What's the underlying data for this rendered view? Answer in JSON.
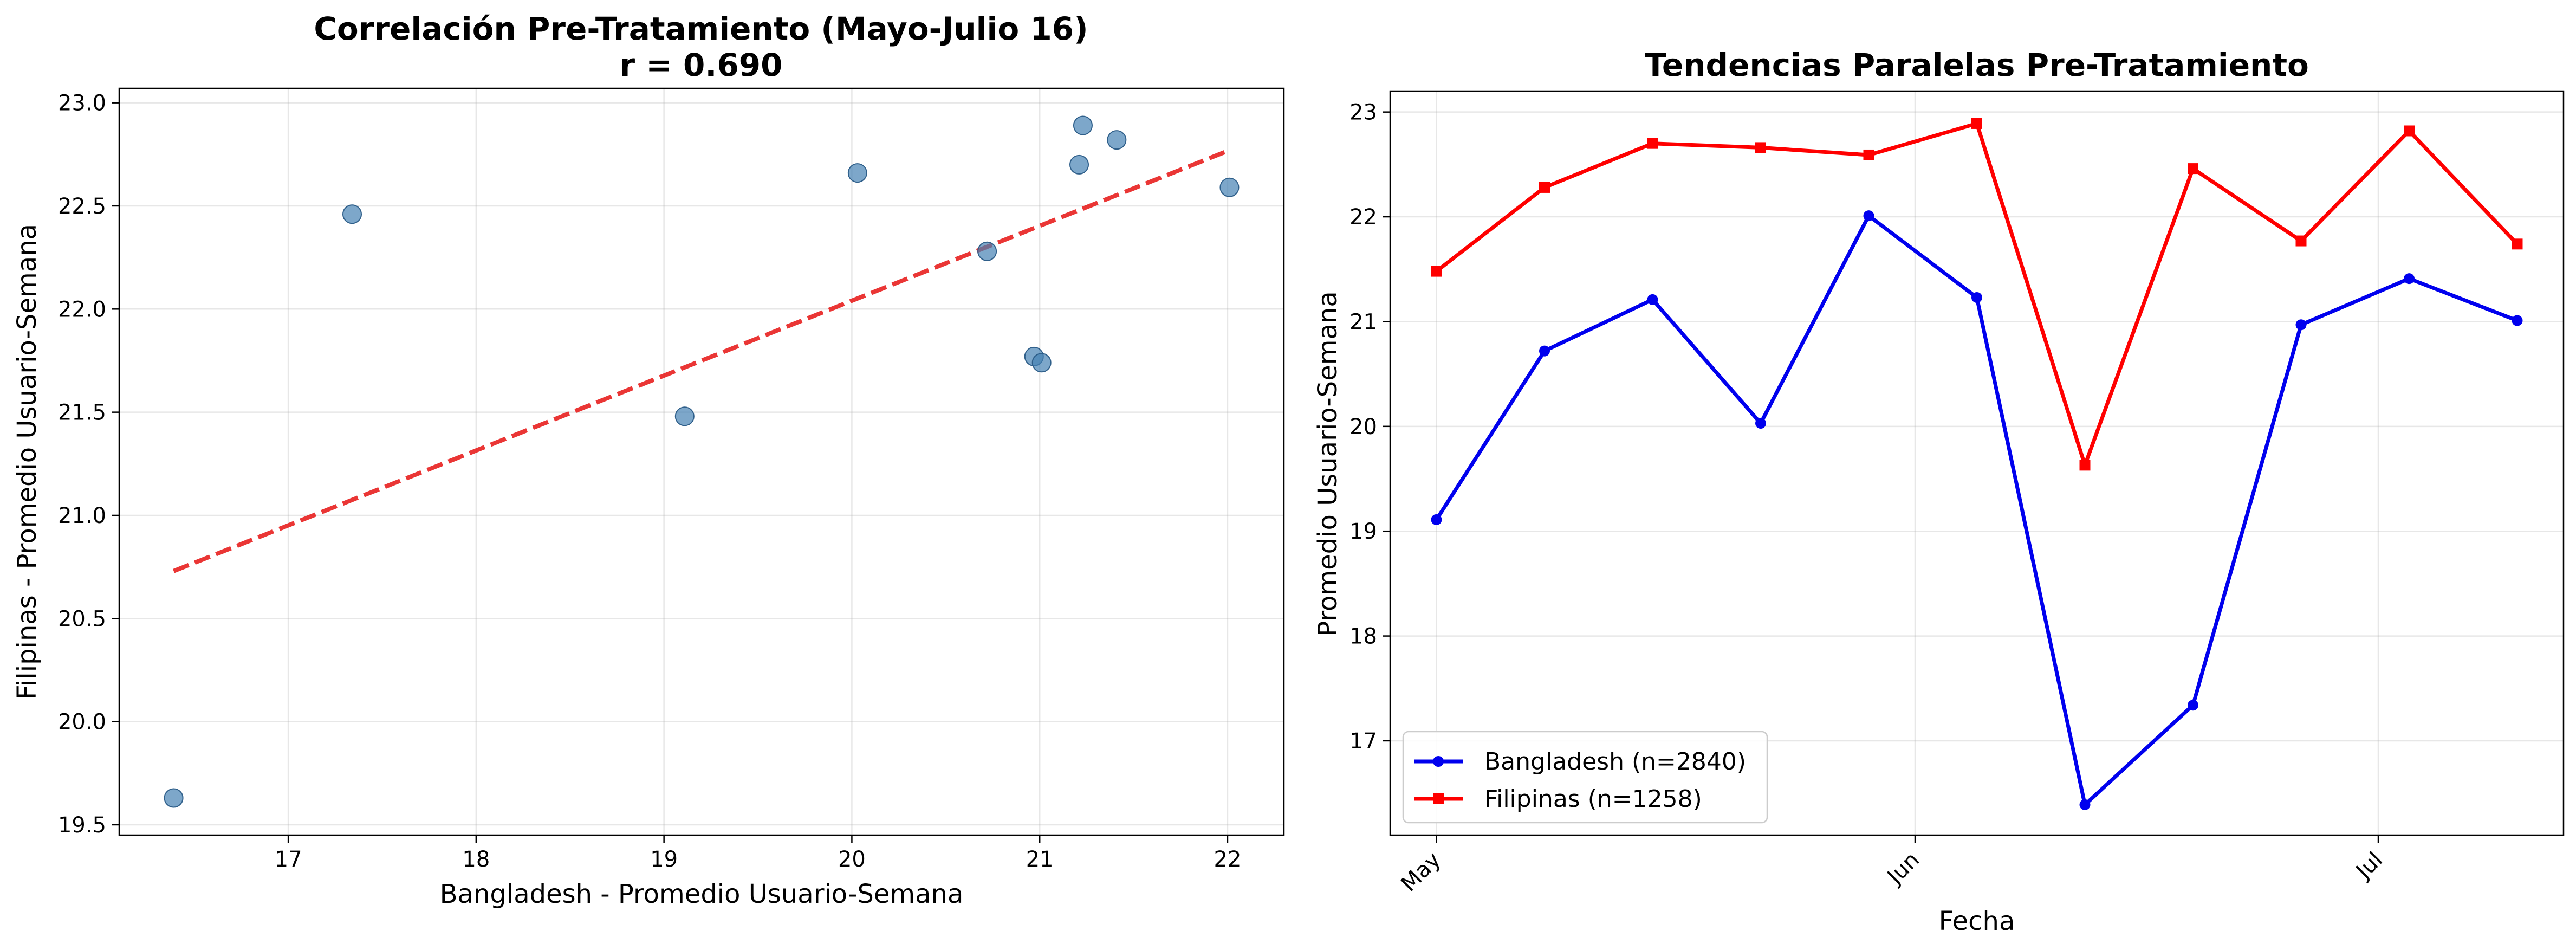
{
  "chart_data": [
    {
      "type": "scatter",
      "title": "Correlación Pre-Tratamiento (Mayo-Julio 16)",
      "subtitle": "r = 0.690",
      "xlabel": "Bangladesh - Promedio Usuario-Semana",
      "ylabel": "Filipinas - Promedio Usuario-Semana",
      "xlim": [
        16.1,
        22.3
      ],
      "ylim": [
        19.45,
        23.07
      ],
      "xticks": [
        "17",
        "18",
        "19",
        "20",
        "21",
        "22"
      ],
      "yticks": [
        "19.5",
        "20.0",
        "20.5",
        "21.0",
        "21.5",
        "22.0",
        "22.5",
        "23.0"
      ],
      "grid": true,
      "point_color": "#4682b4",
      "fit_color": "#e8201f",
      "points": [
        {
          "x": 16.39,
          "y": 19.63
        },
        {
          "x": 17.34,
          "y": 22.46
        },
        {
          "x": 19.11,
          "y": 21.48
        },
        {
          "x": 20.03,
          "y": 22.66
        },
        {
          "x": 20.72,
          "y": 22.28
        },
        {
          "x": 20.97,
          "y": 21.77
        },
        {
          "x": 21.01,
          "y": 21.74
        },
        {
          "x": 21.21,
          "y": 22.7
        },
        {
          "x": 21.23,
          "y": 22.89
        },
        {
          "x": 21.41,
          "y": 22.82
        },
        {
          "x": 22.01,
          "y": 22.59
        }
      ],
      "fit_line": {
        "x": [
          16.39,
          22.01
        ],
        "y": [
          20.73,
          22.77
        ]
      }
    },
    {
      "type": "line",
      "title": "Tendencias Paralelas Pre-Tratamiento",
      "xlabel": "Fecha",
      "ylabel": "Promedio Usuario-Semana",
      "x": [
        "2023-05-01",
        "2023-05-08",
        "2023-05-15",
        "2023-05-22",
        "2023-05-29",
        "2023-06-05",
        "2023-06-12",
        "2023-06-19",
        "2023-06-26",
        "2023-07-03",
        "2023-07-10"
      ],
      "xticks": [
        {
          "label": "May",
          "date": "2023-05-01"
        },
        {
          "label": "Jun",
          "date": "2023-06-01"
        },
        {
          "label": "Jul",
          "date": "2023-07-01"
        }
      ],
      "xlim": [
        "2023-04-28",
        "2023-07-13"
      ],
      "ylim": [
        16.1,
        23.2
      ],
      "yticks": [
        "17",
        "18",
        "19",
        "20",
        "21",
        "22",
        "23"
      ],
      "grid": true,
      "legend_position": "lower-left",
      "series": [
        {
          "name": "Bangladesh (n=2840)",
          "color": "#0000ee",
          "marker": "circle",
          "values": [
            19.11,
            20.72,
            21.21,
            20.03,
            22.01,
            21.23,
            16.39,
            17.34,
            20.97,
            21.41,
            21.01
          ]
        },
        {
          "name": "Filipinas (n=1258)",
          "color": "#ff0000",
          "marker": "square",
          "values": [
            21.48,
            22.28,
            22.7,
            22.66,
            22.59,
            22.89,
            19.63,
            22.46,
            21.77,
            22.82,
            21.74
          ]
        }
      ]
    }
  ]
}
